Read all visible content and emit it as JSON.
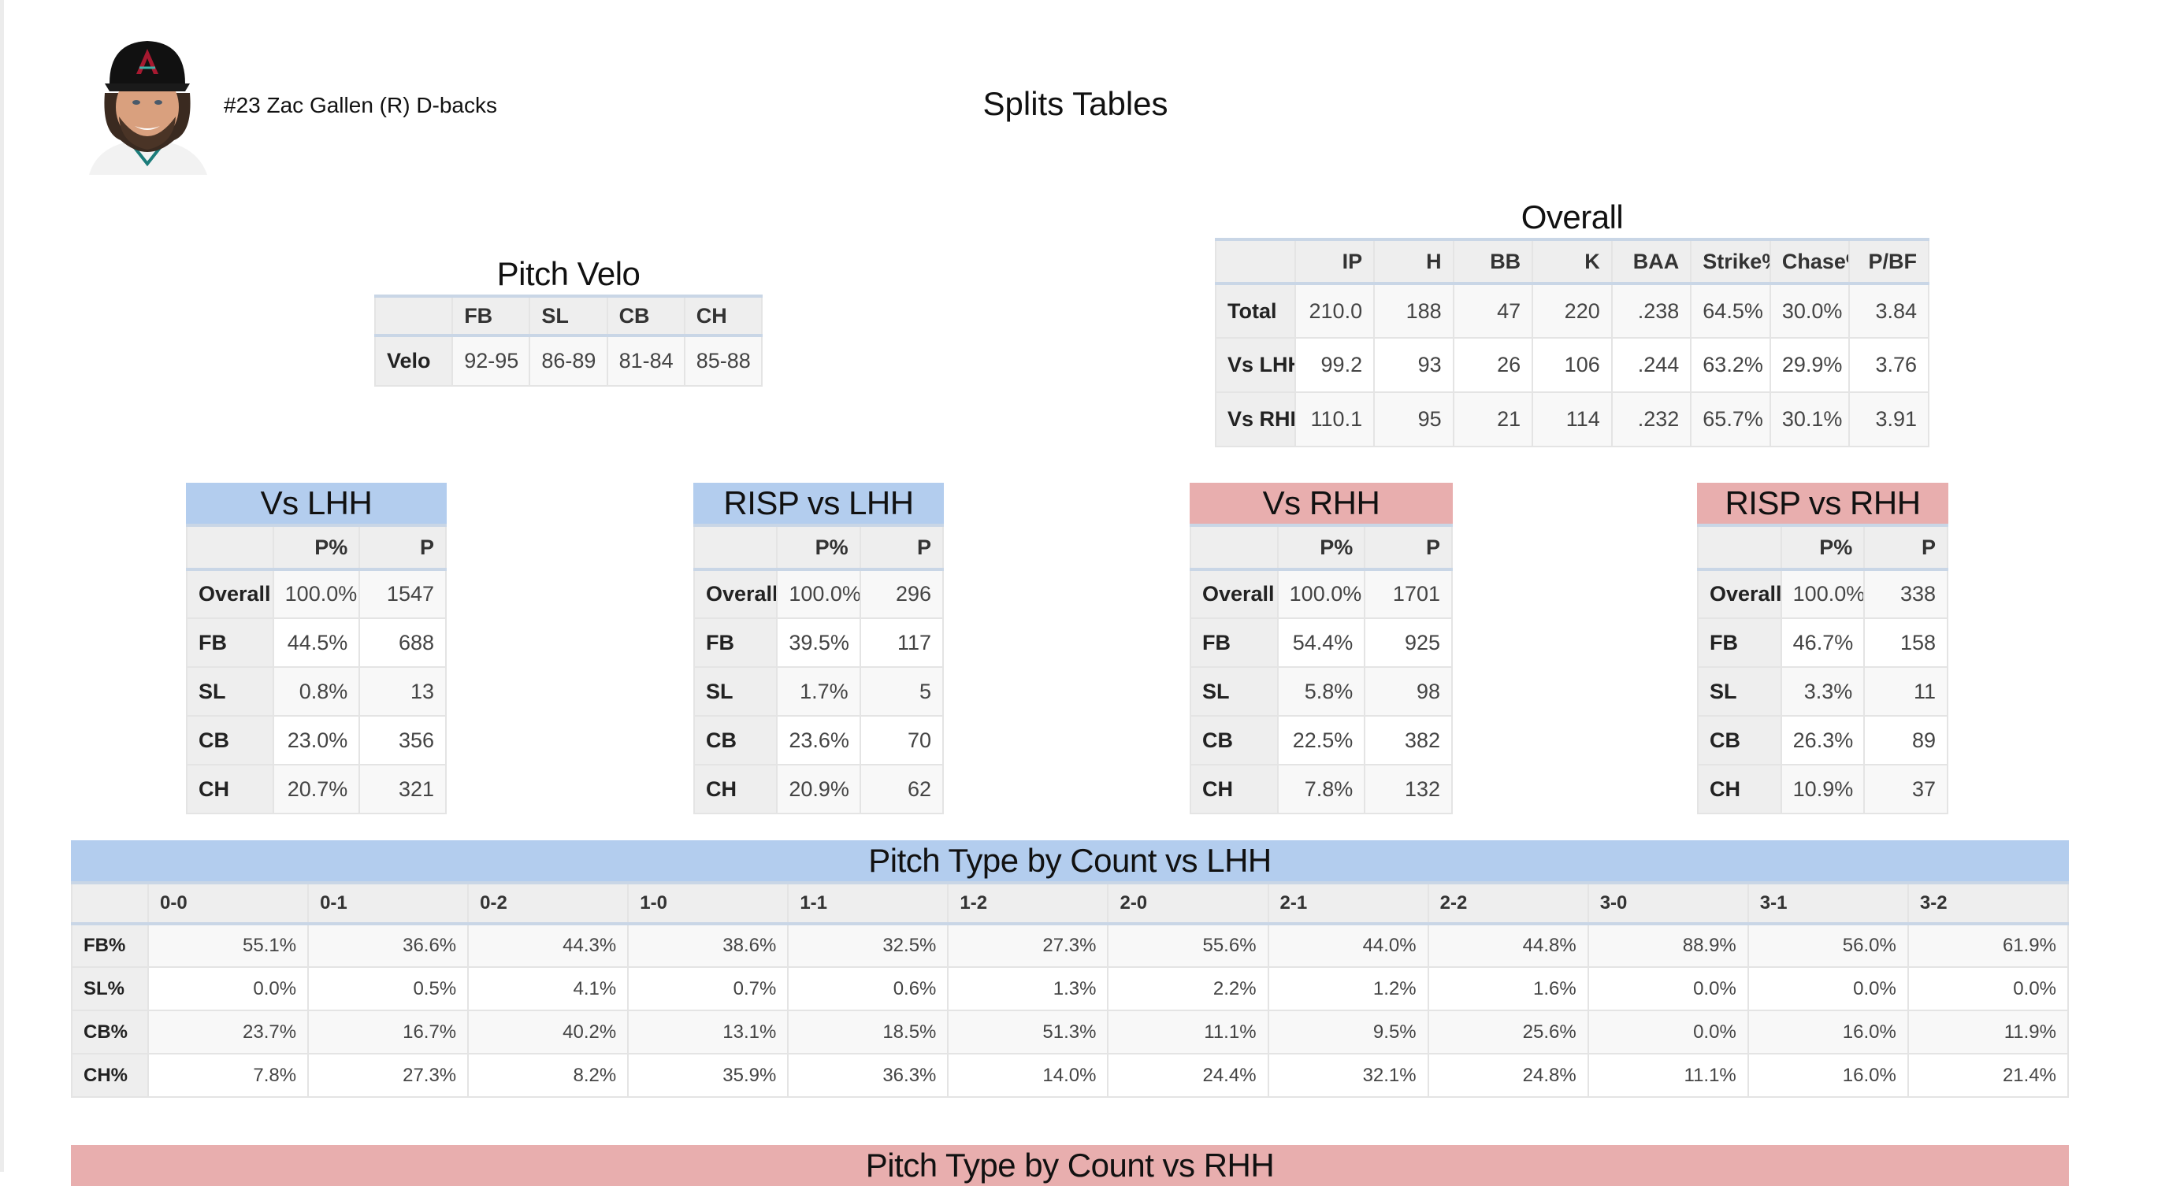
{
  "header": {
    "player": "#23 Zac Gallen (R) D-backs",
    "page_title": "Splits Tables"
  },
  "colors": {
    "lhh": "#b3cdee",
    "rhh": "#e8aeae",
    "header_bg": "#eeeeee"
  },
  "pitch_velo": {
    "title": "Pitch Velo",
    "columns": [
      "",
      "FB",
      "SL",
      "CB",
      "CH"
    ],
    "rows": [
      [
        "Velo",
        "92-95",
        "86-89",
        "81-84",
        "85-88"
      ]
    ]
  },
  "overall": {
    "title": "Overall",
    "columns": [
      "",
      "IP",
      "H",
      "BB",
      "K",
      "BAA",
      "Strike%",
      "Chase%",
      "P/BF"
    ],
    "rows": [
      [
        "Total",
        "210.0",
        "188",
        "47",
        "220",
        ".238",
        "64.5%",
        "30.0%",
        "3.84"
      ],
      [
        "Vs LHH",
        "99.2",
        "93",
        "26",
        "106",
        ".244",
        "63.2%",
        "29.9%",
        "3.76"
      ],
      [
        "Vs RHH",
        "110.1",
        "95",
        "21",
        "114",
        ".232",
        "65.7%",
        "30.1%",
        "3.91"
      ]
    ]
  },
  "splits": [
    {
      "title": "Vs LHH",
      "columns": [
        "",
        "P%",
        "P"
      ],
      "rows": [
        [
          "Overall",
          "100.0%",
          "1547"
        ],
        [
          "FB",
          "44.5%",
          "688"
        ],
        [
          "SL",
          "0.8%",
          "13"
        ],
        [
          "CB",
          "23.0%",
          "356"
        ],
        [
          "CH",
          "20.7%",
          "321"
        ]
      ]
    },
    {
      "title": "RISP vs LHH",
      "columns": [
        "",
        "P%",
        "P"
      ],
      "rows": [
        [
          "Overall",
          "100.0%",
          "296"
        ],
        [
          "FB",
          "39.5%",
          "117"
        ],
        [
          "SL",
          "1.7%",
          "5"
        ],
        [
          "CB",
          "23.6%",
          "70"
        ],
        [
          "CH",
          "20.9%",
          "62"
        ]
      ]
    },
    {
      "title": "Vs RHH",
      "columns": [
        "",
        "P%",
        "P"
      ],
      "rows": [
        [
          "Overall",
          "100.0%",
          "1701"
        ],
        [
          "FB",
          "54.4%",
          "925"
        ],
        [
          "SL",
          "5.8%",
          "98"
        ],
        [
          "CB",
          "22.5%",
          "382"
        ],
        [
          "CH",
          "7.8%",
          "132"
        ]
      ]
    },
    {
      "title": "RISP vs RHH",
      "columns": [
        "",
        "P%",
        "P"
      ],
      "rows": [
        [
          "Overall",
          "100.0%",
          "338"
        ],
        [
          "FB",
          "46.7%",
          "158"
        ],
        [
          "SL",
          "3.3%",
          "11"
        ],
        [
          "CB",
          "26.3%",
          "89"
        ],
        [
          "CH",
          "10.9%",
          "37"
        ]
      ]
    }
  ],
  "count_lhh": {
    "title": "Pitch Type by Count vs LHH",
    "columns": [
      "",
      "0-0",
      "0-1",
      "0-2",
      "1-0",
      "1-1",
      "1-2",
      "2-0",
      "2-1",
      "2-2",
      "3-0",
      "3-1",
      "3-2"
    ],
    "rows": [
      [
        "FB%",
        "55.1%",
        "36.6%",
        "44.3%",
        "38.6%",
        "32.5%",
        "27.3%",
        "55.6%",
        "44.0%",
        "44.8%",
        "88.9%",
        "56.0%",
        "61.9%"
      ],
      [
        "SL%",
        "0.0%",
        "0.5%",
        "4.1%",
        "0.7%",
        "0.6%",
        "1.3%",
        "2.2%",
        "1.2%",
        "1.6%",
        "0.0%",
        "0.0%",
        "0.0%"
      ],
      [
        "CB%",
        "23.7%",
        "16.7%",
        "40.2%",
        "13.1%",
        "18.5%",
        "51.3%",
        "11.1%",
        "9.5%",
        "25.6%",
        "0.0%",
        "16.0%",
        "11.9%"
      ],
      [
        "CH%",
        "7.8%",
        "27.3%",
        "8.2%",
        "35.9%",
        "36.3%",
        "14.0%",
        "24.4%",
        "32.1%",
        "24.8%",
        "11.1%",
        "16.0%",
        "21.4%"
      ]
    ]
  },
  "count_rhh": {
    "title": "Pitch Type by Count vs RHH"
  }
}
